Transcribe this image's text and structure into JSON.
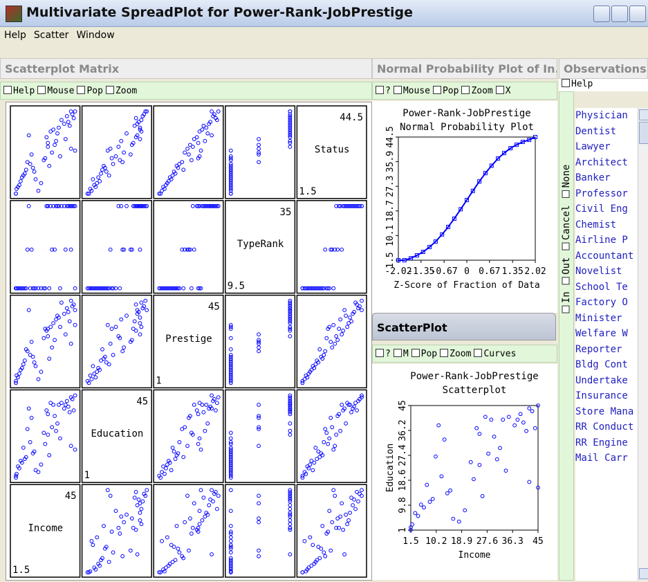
{
  "window": {
    "title": "Multivariate SpreadPlot for Power-Rank-JobPrestige",
    "menu": [
      "Help",
      "Scatter",
      "Window"
    ]
  },
  "matrix": {
    "header": "Scatterplot Matrix",
    "toolbar": [
      "Help",
      "Mouse",
      "Pop",
      "Zoom"
    ],
    "variables": [
      {
        "name": "Status",
        "max": 44.5,
        "min": 1.5
      },
      {
        "name": "TypeRank",
        "max": 35,
        "min": 9.5
      },
      {
        "name": "Prestige",
        "max": 45,
        "min": 1
      },
      {
        "name": "Education",
        "max": 45,
        "min": 1
      },
      {
        "name": "Income",
        "max": 45,
        "min": 1.5
      }
    ],
    "point_color": "#0000ff",
    "data": [
      [
        44.5,
        35,
        45,
        44,
        42
      ],
      [
        44.5,
        35,
        40,
        45,
        45
      ],
      [
        43,
        35,
        42,
        43,
        43
      ],
      [
        42,
        35,
        41,
        42,
        39
      ],
      [
        41,
        35,
        43,
        37,
        44
      ],
      [
        40,
        35,
        44,
        41,
        35
      ],
      [
        39,
        35,
        39,
        39,
        40
      ],
      [
        38,
        35,
        38,
        38,
        37
      ],
      [
        37,
        35,
        34,
        36,
        41
      ],
      [
        36,
        35,
        36,
        40,
        33
      ],
      [
        35,
        35,
        33,
        40,
        29
      ],
      [
        34,
        35,
        31,
        41,
        27
      ],
      [
        33,
        35,
        37,
        30,
        32
      ],
      [
        32,
        35,
        40,
        38,
        11
      ],
      [
        31,
        35,
        29,
        37,
        24
      ],
      [
        30,
        21.5,
        27,
        40,
        38
      ],
      [
        29,
        35,
        35,
        26,
        31
      ],
      [
        28,
        35,
        30,
        35,
        25
      ],
      [
        27,
        21.5,
        24,
        34,
        30
      ],
      [
        26,
        35,
        26,
        24,
        25
      ],
      [
        25,
        21.5,
        22,
        18,
        42
      ],
      [
        24,
        9.5,
        32,
        16,
        45
      ],
      [
        23,
        21.5,
        20,
        28,
        28
      ],
      [
        22,
        21.5,
        23,
        33,
        13
      ],
      [
        21,
        9.5,
        31,
        22,
        34
      ],
      [
        20,
        9.5,
        30,
        19,
        23
      ],
      [
        19,
        9.5,
        25,
        25,
        22
      ],
      [
        18,
        21.5,
        18,
        27,
        10
      ],
      [
        17,
        9.5,
        16,
        20,
        12
      ],
      [
        16,
        9.5,
        14,
        13,
        26
      ],
      [
        15,
        9.5,
        15,
        14,
        14
      ],
      [
        14,
        9.5,
        19,
        12,
        9
      ],
      [
        13,
        9.5,
        12,
        15,
        15
      ],
      [
        12,
        9.5,
        13,
        11,
        8
      ],
      [
        11,
        9.5,
        11,
        17,
        7
      ],
      [
        10,
        9.5,
        9,
        9,
        6
      ],
      [
        9,
        9.5,
        10,
        5,
        16
      ],
      [
        8,
        9.5,
        8,
        10,
        5
      ],
      [
        7,
        9.5,
        7,
        8,
        20
      ],
      [
        6,
        9.5,
        6,
        6,
        4
      ],
      [
        5,
        9.5,
        4,
        7,
        3
      ],
      [
        4,
        9.5,
        5,
        3,
        2
      ],
      [
        3,
        9.5,
        3,
        4,
        18
      ],
      [
        1.5,
        9.5,
        2,
        1,
        1.5
      ],
      [
        1.5,
        9.5,
        1,
        2,
        1.5
      ]
    ]
  },
  "normal_plot": {
    "header": "Normal Probability Plot of In...",
    "toolbar": [
      "?",
      "Mouse",
      "Pop",
      "Zoom",
      "X"
    ],
    "title": "Power-Rank-JobPrestige",
    "subtitle": "Normal Probability Plot",
    "xlabel": "Z-Score of Fraction of Data",
    "color": "#0000ff",
    "x": [
      -2.02,
      -1.84,
      -1.65,
      -1.47,
      -1.29,
      -1.1,
      -0.92,
      -0.73,
      -0.55,
      -0.37,
      -0.18,
      0,
      0.18,
      0.37,
      0.55,
      0.73,
      0.92,
      1.1,
      1.29,
      1.47,
      1.65,
      1.84,
      2.02
    ],
    "y": [
      1.5,
      1.5,
      2.2,
      3.2,
      4.4,
      6.1,
      8,
      10.5,
      13.1,
      16,
      19.3,
      22.5,
      25.7,
      29,
      31.9,
      34.5,
      37,
      38.9,
      40.6,
      41.8,
      42.8,
      43.5,
      44.5
    ],
    "xlim": [
      -2.02,
      2.02
    ],
    "ylim": [
      1.5,
      44.5
    ],
    "xticks": [
      -2.02,
      -1.35,
      -0.67,
      0,
      0.67,
      1.35,
      2.02
    ],
    "yticks": [
      1.5,
      10.1,
      18.7,
      27.3,
      35.9,
      44.5
    ]
  },
  "scatter_plot": {
    "header": "ScatterPlot",
    "toolbar": [
      "?",
      "M",
      "Pop",
      "Zoom",
      "Curves"
    ],
    "title": "Power-Rank-JobPrestige",
    "subtitle": "Scatterplot",
    "xlabel": "Income",
    "ylabel": "Education",
    "xlim": [
      1.5,
      45
    ],
    "ylim": [
      1,
      45
    ],
    "xticks": [
      1.5,
      10.2,
      18.9,
      27.6,
      36.3,
      45
    ],
    "yticks": [
      1,
      9.8,
      18.6,
      27.4,
      36.2,
      45
    ]
  },
  "observations": {
    "header": "Observations",
    "help": "Help",
    "options": [
      "In",
      "Out",
      "Cancel",
      "None"
    ],
    "names": [
      "Physician",
      "Dentist",
      "Lawyer",
      "Architect",
      "Banker",
      "Professor",
      "Civil Eng",
      "Chemist",
      "Airline P",
      "Accountant",
      "Novelist",
      "School Te",
      "Factory O",
      "Minister",
      "Welfare W",
      "Reporter",
      "Bldg Cont",
      "Undertake",
      "Insurance",
      "Store Mana",
      "RR Conduct",
      "RR Engine",
      "Mail Carr"
    ]
  }
}
